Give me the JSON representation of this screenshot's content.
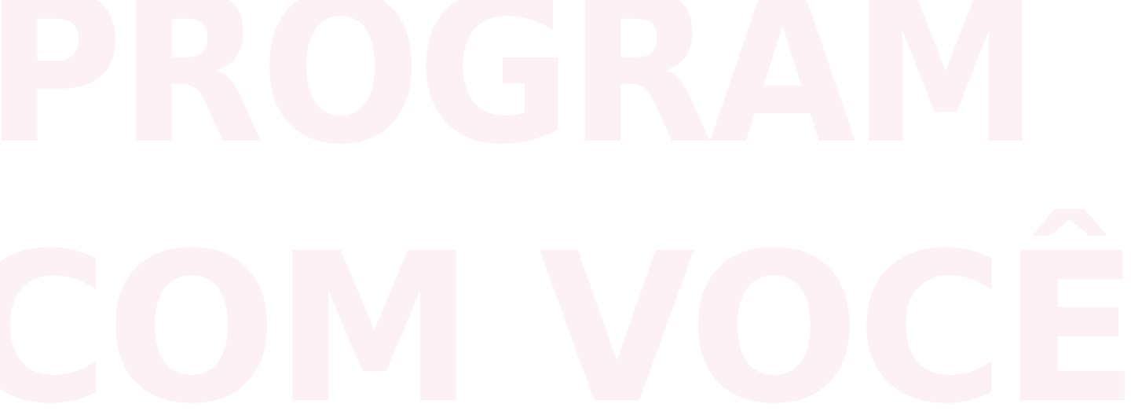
{
  "lines": [
    "PROGRAM",
    "COM VOCÊ"
  ],
  "colors": {
    "background": "#ffffff",
    "text": "#fcf1f4"
  }
}
